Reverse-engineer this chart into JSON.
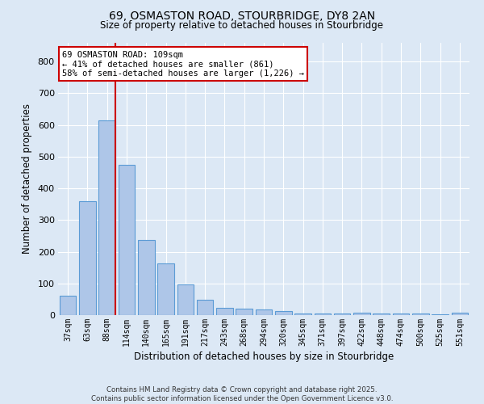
{
  "title_line1": "69, OSMASTON ROAD, STOURBRIDGE, DY8 2AN",
  "title_line2": "Size of property relative to detached houses in Stourbridge",
  "xlabel": "Distribution of detached houses by size in Stourbridge",
  "ylabel": "Number of detached properties",
  "bar_labels": [
    "37sqm",
    "63sqm",
    "88sqm",
    "114sqm",
    "140sqm",
    "165sqm",
    "191sqm",
    "217sqm",
    "243sqm",
    "268sqm",
    "294sqm",
    "320sqm",
    "345sqm",
    "371sqm",
    "397sqm",
    "422sqm",
    "448sqm",
    "474sqm",
    "500sqm",
    "525sqm",
    "551sqm"
  ],
  "bar_values": [
    60,
    360,
    615,
    475,
    238,
    163,
    98,
    48,
    22,
    20,
    18,
    13,
    6,
    4,
    4,
    8,
    4,
    4,
    4,
    2,
    7
  ],
  "bar_color": "#aec6e8",
  "bar_edge_color": "#5b9bd5",
  "red_line_color": "#cc0000",
  "red_line_index": 2.425,
  "annotation_text": "69 OSMASTON ROAD: 109sqm\n← 41% of detached houses are smaller (861)\n58% of semi-detached houses are larger (1,226) →",
  "annotation_box_facecolor": "#ffffff",
  "annotation_box_edgecolor": "#cc0000",
  "ylim_max": 860,
  "background_color": "#dce8f5",
  "grid_color": "#ffffff",
  "footer_line1": "Contains HM Land Registry data © Crown copyright and database right 2025.",
  "footer_line2": "Contains public sector information licensed under the Open Government Licence v3.0."
}
